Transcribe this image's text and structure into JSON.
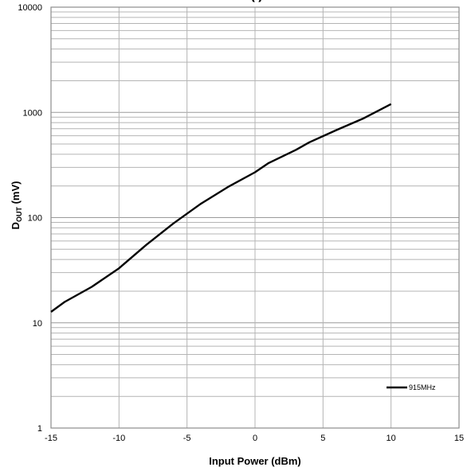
{
  "chart_data": {
    "type": "line",
    "title": "",
    "title_fragment": "(     )",
    "xlabel": "Input Power (dBm)",
    "ylabel_main": "D",
    "ylabel_sub": "OUT",
    "ylabel_unit": " (mV)",
    "xlim": [
      -15,
      15
    ],
    "ylim": [
      1,
      10000
    ],
    "yscale": "log",
    "x_ticks": [
      -15,
      -10,
      -5,
      0,
      5,
      10,
      15
    ],
    "x_tick_labels": [
      "-15",
      "-10",
      "-5",
      "0",
      "5",
      "10",
      "15"
    ],
    "y_ticks": [
      1,
      10,
      100,
      1000,
      10000
    ],
    "y_tick_labels": [
      "1",
      "10",
      "100",
      "1000",
      "10000"
    ],
    "grid": true,
    "legend_position": "bottom-right",
    "series": [
      {
        "name": "915MHz",
        "color": "#000000",
        "x": [
          -15,
          -14,
          -12,
          -10,
          -8,
          -6,
          -4,
          -2,
          0,
          1,
          3,
          4,
          6,
          8,
          10
        ],
        "y": [
          12.7,
          15.8,
          22,
          33,
          55,
          88,
          135,
          195,
          270,
          330,
          440,
          520,
          680,
          880,
          1200
        ]
      }
    ]
  }
}
